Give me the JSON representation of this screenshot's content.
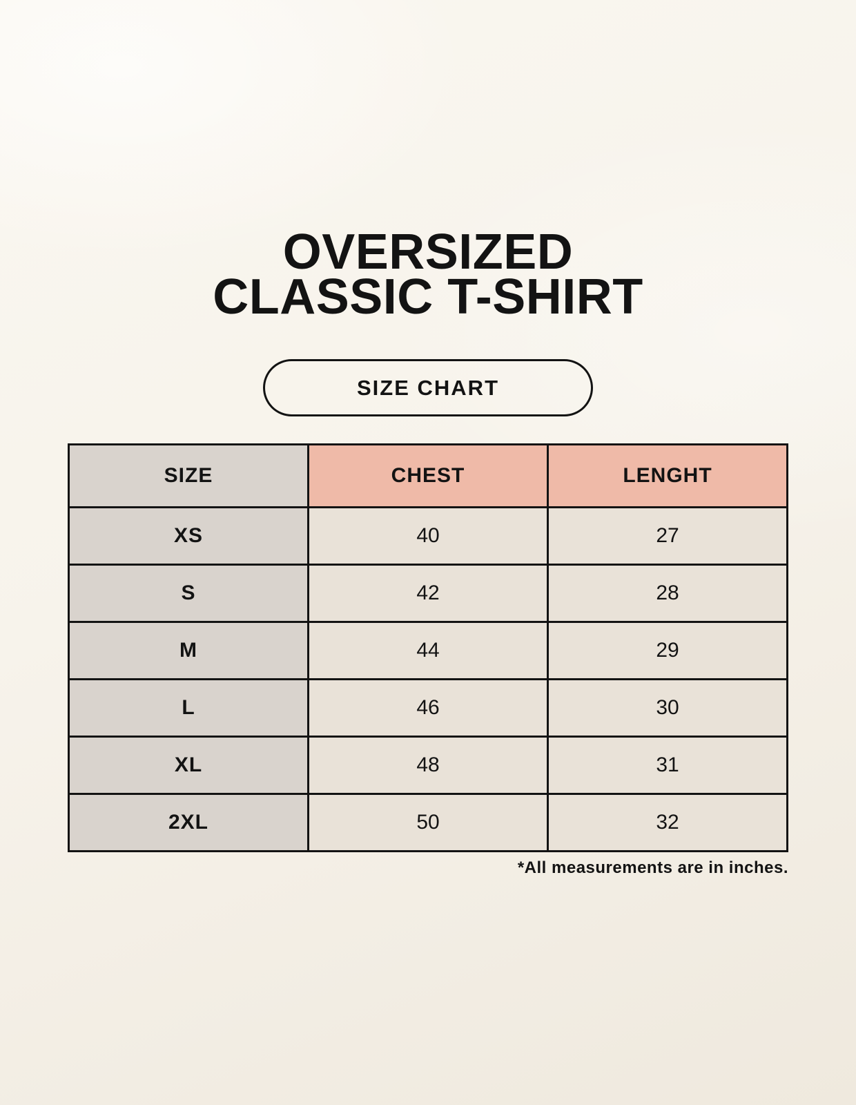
{
  "header": {
    "title_line1": "OVERSIZED",
    "title_line2": "CLASSIC T-SHIRT",
    "badge_label": "SIZE CHART"
  },
  "chart_data": {
    "type": "table",
    "title": "OVERSIZED CLASSIC T-SHIRT",
    "subtitle": "SIZE CHART",
    "columns": [
      "SIZE",
      "CHEST",
      "LENGHT"
    ],
    "rows": [
      {
        "size": "XS",
        "chest": 40,
        "lenght": 27
      },
      {
        "size": "S",
        "chest": 42,
        "lenght": 28
      },
      {
        "size": "M",
        "chest": 44,
        "lenght": 29
      },
      {
        "size": "L",
        "chest": 46,
        "lenght": 30
      },
      {
        "size": "XL",
        "chest": 48,
        "lenght": 31
      },
      {
        "size": "2XL",
        "chest": 50,
        "lenght": 32
      }
    ],
    "units_note": "*All measurements are in inches."
  },
  "footnote": "*All measurements are in inches.",
  "colors": {
    "background": "#faf7f0",
    "header_gray": "#d9d3cd",
    "header_salmon": "#efbaa8",
    "cell_cream": "#e9e2d8",
    "border": "#131313",
    "text": "#131313"
  }
}
